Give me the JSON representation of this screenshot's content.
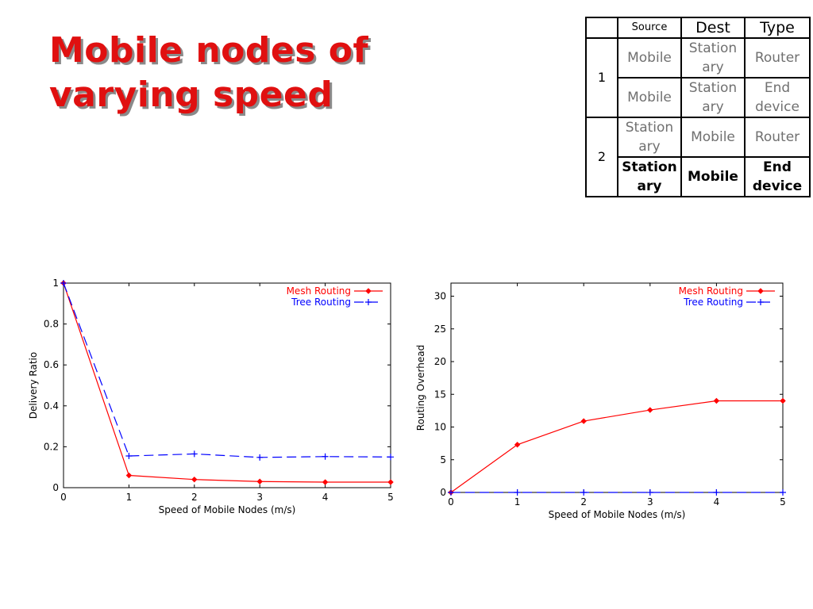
{
  "title": "Mobile nodes of varying speed",
  "table": {
    "headers": [
      "",
      "Source",
      "Dest",
      "Type"
    ],
    "groups": [
      {
        "label": "1",
        "rows": [
          {
            "source": "Mobile",
            "dest": "Station ary",
            "type": "Router"
          },
          {
            "source": "Mobile",
            "dest": "Station ary",
            "type": "End device"
          }
        ]
      },
      {
        "label": "2",
        "rows": [
          {
            "source": "Station ary",
            "dest": "Mobile",
            "type": "Router"
          },
          {
            "source": "Station ary",
            "dest": "Mobile",
            "type": "End device"
          }
        ]
      }
    ]
  },
  "chart_data": [
    {
      "type": "line",
      "title": "",
      "xlabel": "Speed of Mobile Nodes (m/s)",
      "ylabel": "Delivery Ratio",
      "xlim": [
        0,
        5
      ],
      "ylim": [
        0,
        1
      ],
      "xticks": [
        0,
        1,
        2,
        3,
        4,
        5
      ],
      "yticks": [
        0,
        0.2,
        0.4,
        0.6,
        0.8,
        1
      ],
      "ytick_labels": [
        "0",
        "0.2",
        "0.4",
        "0.6",
        "0.8",
        "1"
      ],
      "grid": false,
      "legend_position": "top-right",
      "series": [
        {
          "name": "Mesh Routing",
          "color": "#ff0000",
          "dash": "solid",
          "marker": "diamond",
          "x": [
            0,
            1,
            2,
            3,
            4,
            5
          ],
          "values": [
            1.0,
            0.06,
            0.04,
            0.03,
            0.027,
            0.027
          ]
        },
        {
          "name": "Tree Routing",
          "color": "#0000ff",
          "dash": "dashed",
          "marker": "plus",
          "x": [
            0,
            1,
            2,
            3,
            4,
            5
          ],
          "values": [
            1.0,
            0.155,
            0.165,
            0.148,
            0.152,
            0.15
          ]
        }
      ]
    },
    {
      "type": "line",
      "title": "",
      "xlabel": "Speed of Mobile Nodes (m/s)",
      "ylabel": "Routing Overhead",
      "xlim": [
        0,
        5
      ],
      "ylim": [
        0,
        32
      ],
      "xticks": [
        0,
        1,
        2,
        3,
        4,
        5
      ],
      "yticks": [
        0,
        5,
        10,
        15,
        20,
        25,
        30
      ],
      "ytick_labels": [
        "0",
        "5",
        "10",
        "15",
        "20",
        "25",
        "30"
      ],
      "grid": false,
      "legend_position": "top-right",
      "series": [
        {
          "name": "Mesh Routing",
          "color": "#ff0000",
          "dash": "solid",
          "marker": "diamond",
          "x": [
            0,
            1,
            2,
            3,
            4,
            5
          ],
          "values": [
            0,
            7.3,
            10.9,
            12.6,
            14.0,
            14.0
          ]
        },
        {
          "name": "Tree Routing",
          "color": "#0000ff",
          "dash": "dashed",
          "marker": "plus",
          "x": [
            0,
            1,
            2,
            3,
            4,
            5
          ],
          "values": [
            0,
            0,
            0,
            0,
            0,
            0
          ]
        }
      ]
    }
  ]
}
